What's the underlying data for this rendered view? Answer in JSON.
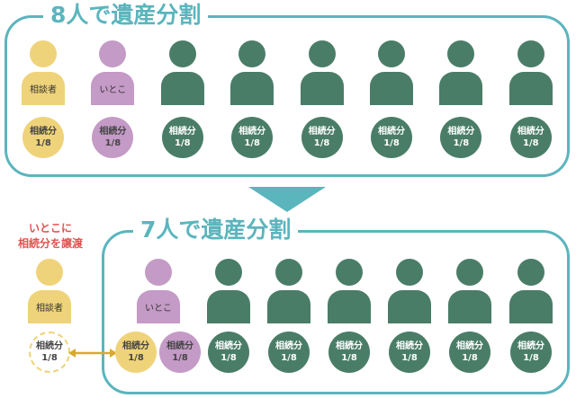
{
  "colors": {
    "teal": "#5bb5bd",
    "yellow": "#efd37a",
    "purple": "#c49ac6",
    "green": "#4a7d68",
    "red": "#e0524f"
  },
  "top": {
    "title": "8人で遺産分割",
    "people": [
      {
        "label": "相談者",
        "color": "yellow"
      },
      {
        "label": "いとこ",
        "color": "purple"
      },
      {
        "label": "",
        "color": "green"
      },
      {
        "label": "",
        "color": "green"
      },
      {
        "label": "",
        "color": "green"
      },
      {
        "label": "",
        "color": "green"
      },
      {
        "label": "",
        "color": "green"
      },
      {
        "label": "",
        "color": "green"
      }
    ],
    "share_label": "相続分",
    "share_value": "1/8"
  },
  "transfer": {
    "note_line1": "いとこに",
    "note_line2": "相続分を譲渡",
    "person_label": "相談者",
    "share_label": "相続分",
    "share_value": "1/8"
  },
  "bottom": {
    "title": "7人で遺産分割",
    "people": [
      {
        "label": "いとこ",
        "color": "purple"
      },
      {
        "label": "",
        "color": "green"
      },
      {
        "label": "",
        "color": "green"
      },
      {
        "label": "",
        "color": "green"
      },
      {
        "label": "",
        "color": "green"
      },
      {
        "label": "",
        "color": "green"
      },
      {
        "label": "",
        "color": "green"
      }
    ],
    "shares": [
      {
        "color": "yellow",
        "label": "相続分",
        "value": "1/8"
      },
      {
        "color": "purple",
        "label": "相続分",
        "value": "1/8"
      },
      {
        "color": "green",
        "label": "相続分",
        "value": "1/8"
      },
      {
        "color": "green",
        "label": "相続分",
        "value": "1/8"
      },
      {
        "color": "green",
        "label": "相続分",
        "value": "1/8"
      },
      {
        "color": "green",
        "label": "相続分",
        "value": "1/8"
      },
      {
        "color": "green",
        "label": "相続分",
        "value": "1/8"
      },
      {
        "color": "green",
        "label": "相続分",
        "value": "1/8"
      }
    ]
  }
}
